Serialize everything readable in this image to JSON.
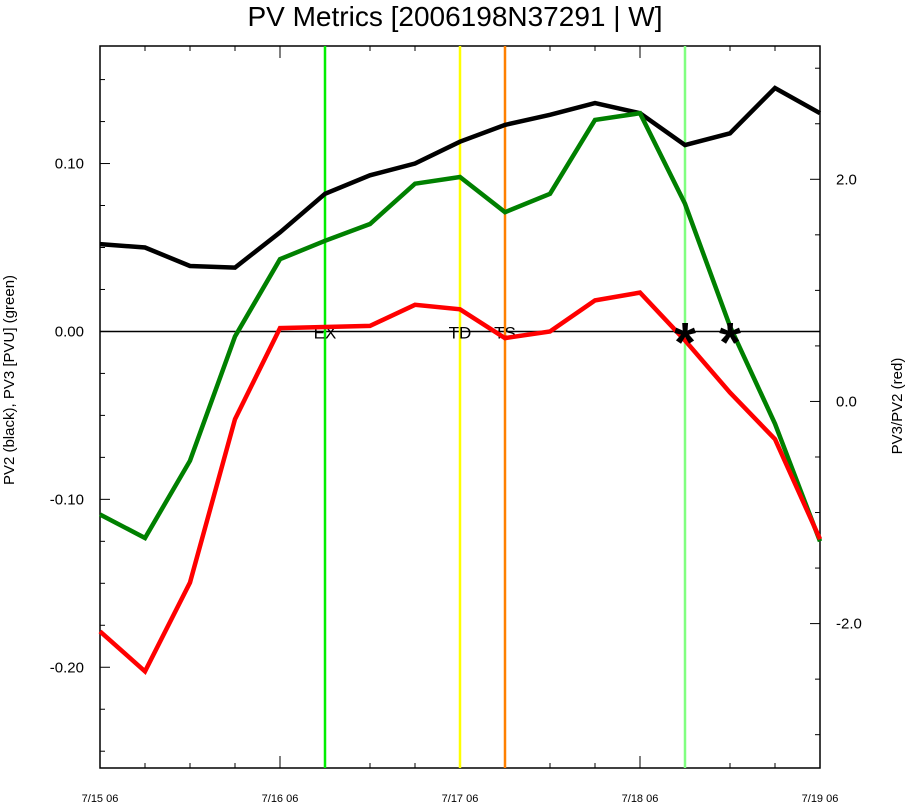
{
  "chart_data": {
    "type": "line",
    "title": "PV Metrics [2006198N37291 | W]",
    "xlabel": "",
    "ylabel_left": "PV2 (black), PV3 [PVU] (green)",
    "ylabel_right": "PV3/PV2 (red)",
    "x": [
      "2006-07-15 00",
      "2006-07-15 06",
      "2006-07-15 12",
      "2006-07-15 18",
      "2006-07-16 00",
      "2006-07-16 06",
      "2006-07-16 12",
      "2006-07-16 18",
      "2006-07-17 00",
      "2006-07-17 06",
      "2006-07-17 12",
      "2006-07-17 18",
      "2006-07-18 00",
      "2006-07-18 06",
      "2006-07-18 12",
      "2006-07-18 18",
      "2006-07-19 00"
    ],
    "xlim": [
      "2006-07-15 00",
      "2006-07-19 00"
    ],
    "xticks": [
      "7/15 06",
      "7/16 06",
      "7/17 06",
      "7/18 06",
      "7/19 06"
    ],
    "ylim_left": [
      -0.26,
      0.17
    ],
    "yticks_left": [
      "-0.20",
      "-0.10",
      "0.00",
      "0.10"
    ],
    "ylim_right": [
      -3.3,
      3.2
    ],
    "yticks_right": [
      "-2.0",
      "0.0",
      "2.0"
    ],
    "series": [
      {
        "values": [
          0.052,
          0.05,
          0.039,
          0.038,
          0.059,
          0.082,
          0.093,
          0.1,
          0.113,
          0.123,
          0.129,
          0.136,
          0.13,
          0.111,
          0.118,
          0.145,
          0.13
        ],
        "axis": "left",
        "color": "#000000"
      },
      {
        "values": [
          -0.109,
          -0.123,
          -0.077,
          -0.003,
          0.043,
          0.054,
          0.064,
          0.088,
          0.092,
          0.071,
          0.082,
          0.126,
          0.13,
          0.076,
          0.003,
          -0.055,
          -0.125
        ],
        "axis": "left",
        "color": "#008000"
      },
      {
        "values": [
          -2.07,
          -2.43,
          -1.63,
          -0.16,
          0.66,
          0.67,
          0.68,
          0.87,
          0.83,
          0.57,
          0.63,
          0.91,
          0.98,
          0.55,
          0.08,
          -0.34,
          -1.24
        ],
        "axis": "right",
        "color": "#ff0000"
      }
    ],
    "event_lines": [
      {
        "label": "EX",
        "x": "2006-07-16 06",
        "color": "#00ee00"
      },
      {
        "label": "TD",
        "x": "2006-07-17 00",
        "color": "#ffff00"
      },
      {
        "label": "TS",
        "x": "2006-07-17 06",
        "color": "#ff8000"
      },
      {
        "label": "",
        "x": "2006-07-18 06",
        "color": "#80ff80"
      }
    ],
    "event_labels": [
      "EX",
      "TD",
      "TS"
    ],
    "markers": [
      {
        "symbol": "*",
        "x": "2006-07-18 06"
      },
      {
        "symbol": "*",
        "x": "2006-07-18 12"
      }
    ],
    "grid": false
  }
}
